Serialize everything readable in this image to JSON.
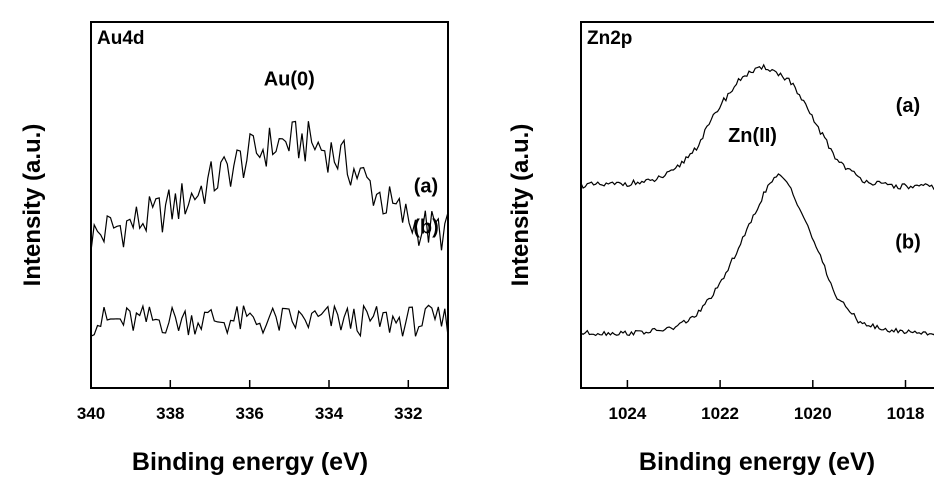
{
  "chart_data": [
    {
      "type": "line",
      "panel_label": "Au4d",
      "xlabel": "Binding energy (eV)",
      "ylabel": "Intensity (a.u.)",
      "xlim": [
        340,
        331
      ],
      "x_reversed": true,
      "xticks": [
        340,
        338,
        336,
        334,
        332
      ],
      "annotations": [
        {
          "text": "Au(0)",
          "x": 335.0,
          "y": 1.9
        }
      ],
      "series": [
        {
          "name": "(a)",
          "x": [
            340.0,
            339.5,
            339.0,
            338.5,
            338.0,
            337.5,
            337.0,
            336.5,
            336.0,
            335.5,
            335.0,
            334.5,
            334.0,
            333.5,
            333.0,
            332.5,
            332.0,
            331.5,
            331.0
          ],
          "y": [
            0.95,
            1.0,
            1.03,
            1.07,
            1.13,
            1.2,
            1.29,
            1.38,
            1.46,
            1.52,
            1.55,
            1.54,
            1.49,
            1.4,
            1.28,
            1.15,
            1.05,
            1.0,
            0.98
          ]
        },
        {
          "name": "(b)",
          "x": [
            340.0,
            339.0,
            338.0,
            337.0,
            336.0,
            335.0,
            334.0,
            333.0,
            332.0,
            331.0
          ],
          "y": [
            0.42,
            0.42,
            0.43,
            0.43,
            0.42,
            0.42,
            0.43,
            0.42,
            0.42,
            0.42
          ]
        }
      ]
    },
    {
      "type": "line",
      "panel_label": "Zn2p",
      "xlabel": "Binding energy (eV)",
      "ylabel": "Intensity (a.u.)",
      "xlim": [
        1025.0,
        1017.3
      ],
      "x_reversed": true,
      "xticks": [
        1024,
        1022,
        1020,
        1018
      ],
      "annotations": [
        {
          "text": "Zn(II)",
          "x": 1021.3,
          "y": 1.48
        }
      ],
      "series": [
        {
          "name": "(a)",
          "x": [
            1025.0,
            1024.5,
            1024.0,
            1023.5,
            1023.0,
            1022.5,
            1022.0,
            1021.5,
            1021.0,
            1020.5,
            1020.0,
            1019.5,
            1019.0,
            1018.5,
            1018.0,
            1017.5,
            1017.3
          ],
          "y": [
            1.22,
            1.22,
            1.23,
            1.24,
            1.3,
            1.45,
            1.7,
            1.88,
            1.93,
            1.85,
            1.62,
            1.38,
            1.26,
            1.22,
            1.21,
            1.21,
            1.21
          ]
        },
        {
          "name": "(b)",
          "x": [
            1025.0,
            1024.5,
            1024.0,
            1023.5,
            1023.0,
            1022.5,
            1022.0,
            1021.5,
            1021.0,
            1020.75,
            1020.5,
            1020.0,
            1019.5,
            1019.0,
            1018.5,
            1018.0,
            1017.5,
            1017.3
          ],
          "y": [
            0.33,
            0.33,
            0.33,
            0.34,
            0.36,
            0.44,
            0.62,
            0.9,
            1.2,
            1.28,
            1.22,
            0.9,
            0.55,
            0.4,
            0.35,
            0.34,
            0.33,
            0.33
          ]
        }
      ]
    }
  ]
}
